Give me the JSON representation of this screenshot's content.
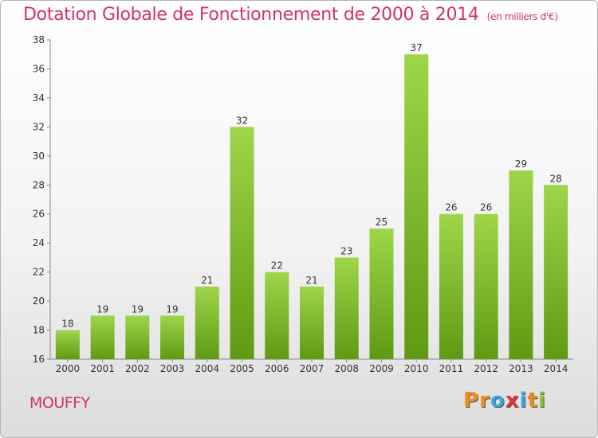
{
  "title": "Dotation Globale de Fonctionnement de 2000 à 2014",
  "unit": "(en milliers d'€)",
  "commune": "MOUFFY",
  "logo": {
    "letters": [
      "P",
      "r",
      "o",
      "x",
      "i",
      "t",
      "i"
    ]
  },
  "colors": {
    "title": "#d4306e",
    "bar_top": "#9ed64a",
    "bar_bottom": "#5e9a12",
    "axis": "#888888",
    "logo_letters": [
      "#f28a1c",
      "#f28a1c",
      "#3aa8e0",
      "#e0323c",
      "#3aa8e0",
      "#f28a1c",
      "#8cc63f"
    ]
  },
  "chart_data": {
    "type": "bar",
    "title": "Dotation Globale de Fonctionnement de 2000 à 2014",
    "categories": [
      "2000",
      "2001",
      "2002",
      "2003",
      "2004",
      "2005",
      "2006",
      "2007",
      "2008",
      "2009",
      "2010",
      "2011",
      "2012",
      "2013",
      "2014"
    ],
    "values": [
      18,
      19,
      19,
      19,
      21,
      32,
      22,
      21,
      23,
      25,
      37,
      26,
      26,
      29,
      28
    ],
    "ylim": [
      16,
      38
    ],
    "yticks": [
      16,
      18,
      20,
      22,
      24,
      26,
      28,
      30,
      32,
      34,
      36,
      38
    ],
    "grid": false,
    "legend": "none"
  }
}
